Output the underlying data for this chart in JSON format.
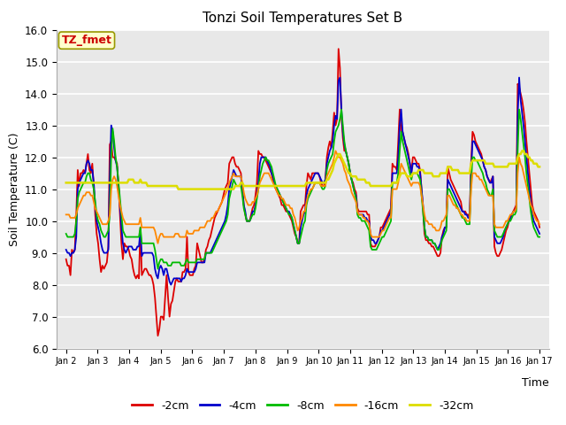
{
  "title": "Tonzi Soil Temperatures Set B",
  "xlabel": "Time",
  "ylabel": "Soil Temperature (C)",
  "label_annotation": "TZ_fmet",
  "ylim": [
    6.0,
    16.0
  ],
  "yticks": [
    6.0,
    7.0,
    8.0,
    9.0,
    10.0,
    11.0,
    12.0,
    13.0,
    14.0,
    15.0,
    16.0
  ],
  "xtick_labels": [
    "Jan 2",
    "Jan 3",
    "Jan 4",
    "Jan 5",
    "Jan 6",
    "Jan 7",
    "Jan 8",
    "Jan 9",
    "Jan 10",
    "Jan 11",
    "Jan 12",
    "Jan 13",
    "Jan 14",
    "Jan 15",
    "Jan 16",
    "Jan 17"
  ],
  "line_colors": {
    "-2cm": "#dd0000",
    "-4cm": "#0000cc",
    "-8cm": "#00bb00",
    "-16cm": "#ff8800",
    "-32cm": "#dddd00"
  },
  "line_widths": {
    "-2cm": 1.3,
    "-4cm": 1.3,
    "-8cm": 1.3,
    "-16cm": 1.3,
    "-32cm": 1.8
  },
  "bg_color": "#e8e8e8",
  "series": {
    "-2cm": [
      8.8,
      8.6,
      8.6,
      8.3,
      9.1,
      9.0,
      9.1,
      10.2,
      11.6,
      11.1,
      11.5,
      11.5,
      11.6,
      11.5,
      11.8,
      12.1,
      11.6,
      11.5,
      11.8,
      11.1,
      10.2,
      9.6,
      9.3,
      8.8,
      8.4,
      8.6,
      8.5,
      8.6,
      8.7,
      9.2,
      12.4,
      12.5,
      12.0,
      12.0,
      11.9,
      11.8,
      11.1,
      10.2,
      9.3,
      8.8,
      9.3,
      9.2,
      9.2,
      9.1,
      8.9,
      8.8,
      8.5,
      8.3,
      8.2,
      8.3,
      8.2,
      9.8,
      8.3,
      8.4,
      8.5,
      8.5,
      8.4,
      8.3,
      8.3,
      8.2,
      8.0,
      7.6,
      7.0,
      6.4,
      6.6,
      7.0,
      7.0,
      6.9,
      7.6,
      8.3,
      7.6,
      7.0,
      7.4,
      7.5,
      7.8,
      8.1,
      8.2,
      8.1,
      8.1,
      8.1,
      8.4,
      8.4,
      8.5,
      9.5,
      8.4,
      8.3,
      8.3,
      8.3,
      8.5,
      8.6,
      9.3,
      9.1,
      8.9,
      8.7,
      8.7,
      8.8,
      9.1,
      9.2,
      9.4,
      9.5,
      9.7,
      9.9,
      10.1,
      10.2,
      10.3,
      10.4,
      10.5,
      10.6,
      10.8,
      11.0,
      11.1,
      11.2,
      11.8,
      11.9,
      12.0,
      12.0,
      11.8,
      11.7,
      11.7,
      11.6,
      11.5,
      11.0,
      10.5,
      10.2,
      10.0,
      10.0,
      10.0,
      10.2,
      10.4,
      10.5,
      10.8,
      11.2,
      12.2,
      12.1,
      12.1,
      12.0,
      12.0,
      11.9,
      11.8,
      11.7,
      11.6,
      11.5,
      11.3,
      11.1,
      11.0,
      10.9,
      10.8,
      10.7,
      10.5,
      10.5,
      10.4,
      10.3,
      10.3,
      10.2,
      10.1,
      10.0,
      9.8,
      9.6,
      9.5,
      9.3,
      9.3,
      10.3,
      10.4,
      10.5,
      10.5,
      11.1,
      11.5,
      11.4,
      11.3,
      11.5,
      11.5,
      11.5,
      11.5,
      11.5,
      11.4,
      11.2,
      11.1,
      11.1,
      11.3,
      12.0,
      12.3,
      12.5,
      12.3,
      12.8,
      13.4,
      13.0,
      13.2,
      15.4,
      14.8,
      13.3,
      12.6,
      12.2,
      12.2,
      12.0,
      11.8,
      11.5,
      11.3,
      11.2,
      11.0,
      10.9,
      10.4,
      10.3,
      10.3,
      10.3,
      10.3,
      10.3,
      10.3,
      10.2,
      10.2,
      9.3,
      9.2,
      9.2,
      9.2,
      9.3,
      9.4,
      9.5,
      9.8,
      9.8,
      9.9,
      10.0,
      10.1,
      10.2,
      10.3,
      10.4,
      11.8,
      11.7,
      11.7,
      11.6,
      12.5,
      13.5,
      12.8,
      12.8,
      12.6,
      12.4,
      12.3,
      12.1,
      11.8,
      11.5,
      12.0,
      12.0,
      11.9,
      11.8,
      11.8,
      11.6,
      11.0,
      10.4,
      9.6,
      9.4,
      9.4,
      9.3,
      9.3,
      9.2,
      9.2,
      9.1,
      9.0,
      8.9,
      8.9,
      9.0,
      9.5,
      9.7,
      9.8,
      9.8,
      11.7,
      11.5,
      11.3,
      11.2,
      11.1,
      11.0,
      10.9,
      10.8,
      10.7,
      10.6,
      10.3,
      10.3,
      10.3,
      10.2,
      10.2,
      10.1,
      11.8,
      12.8,
      12.7,
      12.5,
      12.4,
      12.3,
      12.2,
      12.1,
      11.9,
      11.7,
      11.6,
      11.4,
      11.3,
      11.2,
      11.3,
      11.4,
      9.2,
      9.0,
      8.9,
      8.9,
      9.0,
      9.1,
      9.3,
      9.5,
      9.7,
      9.8,
      10.0,
      10.1,
      10.2,
      10.3,
      10.4,
      10.5,
      14.3,
      14.2,
      14.0,
      13.8,
      13.5,
      13.1,
      12.5,
      12.0,
      11.5,
      11.0,
      10.5,
      10.3,
      10.2,
      10.1,
      10.0,
      9.8
    ],
    "-4cm": [
      9.1,
      9.0,
      9.0,
      8.9,
      9.0,
      9.0,
      9.1,
      9.5,
      11.0,
      11.2,
      11.3,
      11.4,
      11.5,
      11.5,
      11.8,
      11.9,
      11.8,
      11.6,
      11.6,
      11.2,
      10.5,
      10.0,
      9.8,
      9.6,
      9.3,
      9.1,
      9.0,
      9.0,
      9.0,
      9.1,
      11.3,
      13.0,
      12.8,
      12.3,
      11.9,
      11.7,
      11.1,
      10.5,
      9.8,
      9.3,
      9.1,
      9.0,
      9.1,
      9.2,
      9.2,
      9.2,
      9.1,
      9.1,
      9.1,
      9.2,
      9.2,
      9.7,
      8.9,
      9.0,
      9.0,
      9.0,
      9.0,
      9.0,
      9.0,
      9.0,
      8.9,
      8.5,
      8.3,
      8.2,
      8.5,
      8.6,
      8.5,
      8.3,
      8.5,
      8.5,
      8.3,
      8.1,
      8.0,
      8.1,
      8.2,
      8.2,
      8.2,
      8.2,
      8.2,
      8.1,
      8.2,
      8.2,
      8.3,
      8.5,
      8.4,
      8.4,
      8.4,
      8.4,
      8.4,
      8.5,
      8.7,
      8.7,
      8.7,
      8.7,
      8.7,
      8.7,
      9.0,
      9.0,
      9.0,
      9.0,
      9.1,
      9.2,
      9.3,
      9.4,
      9.5,
      9.6,
      9.7,
      9.8,
      9.9,
      10.0,
      10.2,
      10.5,
      11.0,
      11.2,
      11.4,
      11.6,
      11.5,
      11.4,
      11.4,
      11.4,
      11.4,
      11.0,
      10.5,
      10.3,
      10.0,
      10.0,
      10.0,
      10.1,
      10.3,
      10.3,
      10.5,
      10.8,
      11.2,
      11.8,
      12.0,
      12.0,
      12.0,
      12.0,
      11.9,
      11.8,
      11.7,
      11.5,
      11.4,
      11.2,
      11.1,
      11.0,
      10.9,
      10.8,
      10.7,
      10.6,
      10.5,
      10.4,
      10.3,
      10.3,
      10.2,
      10.1,
      9.9,
      9.7,
      9.5,
      9.3,
      9.3,
      9.8,
      10.0,
      10.2,
      10.3,
      10.8,
      11.0,
      11.1,
      11.2,
      11.3,
      11.4,
      11.5,
      11.5,
      11.5,
      11.4,
      11.3,
      11.2,
      11.2,
      11.3,
      11.8,
      12.0,
      12.2,
      12.3,
      12.5,
      13.0,
      13.3,
      13.2,
      14.4,
      14.5,
      13.5,
      12.8,
      12.4,
      12.2,
      12.0,
      11.8,
      11.5,
      11.3,
      11.1,
      10.9,
      10.8,
      10.3,
      10.2,
      10.2,
      10.2,
      10.2,
      10.1,
      10.1,
      10.0,
      10.0,
      9.5,
      9.4,
      9.4,
      9.3,
      9.3,
      9.4,
      9.5,
      9.7,
      9.7,
      9.8,
      9.9,
      10.0,
      10.1,
      10.2,
      10.3,
      11.5,
      11.5,
      11.5,
      11.5,
      12.0,
      13.0,
      13.5,
      12.8,
      12.6,
      12.4,
      12.2,
      12.0,
      11.8,
      11.5,
      11.8,
      11.8,
      11.8,
      11.7,
      11.7,
      11.5,
      11.0,
      10.5,
      9.8,
      9.5,
      9.5,
      9.4,
      9.4,
      9.4,
      9.3,
      9.3,
      9.2,
      9.1,
      9.2,
      9.3,
      9.5,
      9.6,
      9.8,
      9.8,
      11.3,
      11.2,
      11.1,
      11.0,
      10.9,
      10.8,
      10.7,
      10.6,
      10.5,
      10.4,
      10.3,
      10.3,
      10.2,
      10.2,
      10.1,
      10.1,
      11.5,
      12.5,
      12.5,
      12.4,
      12.3,
      12.2,
      12.1,
      12.0,
      11.9,
      11.7,
      11.6,
      11.4,
      11.3,
      11.2,
      11.2,
      11.4,
      9.5,
      9.4,
      9.3,
      9.3,
      9.3,
      9.4,
      9.5,
      9.7,
      9.8,
      9.9,
      10.0,
      10.1,
      10.2,
      10.3,
      10.3,
      10.4,
      13.3,
      14.5,
      13.8,
      13.4,
      13.0,
      12.5,
      12.0,
      11.5,
      11.0,
      10.6,
      10.2,
      10.0,
      9.9,
      9.8,
      9.7,
      9.6
    ],
    "-8cm": [
      9.6,
      9.5,
      9.5,
      9.5,
      9.5,
      9.5,
      9.6,
      10.0,
      10.7,
      10.9,
      11.0,
      11.1,
      11.2,
      11.2,
      11.4,
      11.5,
      11.5,
      11.3,
      11.2,
      11.0,
      10.6,
      10.2,
      10.0,
      9.9,
      9.7,
      9.6,
      9.5,
      9.5,
      9.6,
      9.7,
      10.2,
      12.1,
      12.9,
      12.5,
      12.0,
      11.7,
      11.2,
      10.7,
      10.2,
      9.7,
      9.6,
      9.5,
      9.5,
      9.5,
      9.5,
      9.5,
      9.5,
      9.5,
      9.5,
      9.5,
      9.5,
      9.8,
      9.3,
      9.3,
      9.3,
      9.3,
      9.3,
      9.3,
      9.3,
      9.3,
      9.3,
      9.1,
      8.8,
      8.5,
      8.7,
      8.8,
      8.8,
      8.7,
      8.7,
      8.7,
      8.6,
      8.6,
      8.6,
      8.7,
      8.7,
      8.7,
      8.7,
      8.7,
      8.7,
      8.6,
      8.6,
      8.6,
      8.7,
      8.8,
      8.7,
      8.7,
      8.7,
      8.7,
      8.7,
      8.7,
      8.8,
      8.8,
      8.8,
      8.8,
      8.8,
      8.8,
      9.0,
      9.0,
      9.0,
      9.0,
      9.0,
      9.1,
      9.2,
      9.3,
      9.4,
      9.5,
      9.6,
      9.7,
      9.8,
      9.9,
      10.0,
      10.2,
      10.7,
      10.9,
      11.1,
      11.3,
      11.2,
      11.1,
      11.1,
      11.1,
      11.1,
      10.8,
      10.4,
      10.2,
      10.0,
      10.0,
      10.0,
      10.1,
      10.2,
      10.2,
      10.4,
      10.7,
      11.0,
      11.4,
      11.6,
      11.8,
      11.9,
      12.0,
      11.9,
      11.9,
      11.8,
      11.7,
      11.5,
      11.3,
      11.1,
      11.0,
      10.9,
      10.8,
      10.7,
      10.6,
      10.5,
      10.4,
      10.3,
      10.2,
      10.2,
      10.1,
      9.9,
      9.7,
      9.5,
      9.3,
      9.3,
      9.5,
      9.7,
      9.9,
      10.0,
      10.5,
      10.7,
      10.8,
      10.9,
      11.0,
      11.1,
      11.2,
      11.2,
      11.2,
      11.2,
      11.1,
      11.0,
      11.0,
      11.1,
      11.6,
      11.8,
      11.9,
      12.0,
      12.1,
      12.5,
      12.8,
      12.9,
      13.0,
      13.2,
      13.5,
      13.0,
      12.5,
      12.2,
      12.0,
      11.8,
      11.5,
      11.3,
      11.1,
      10.9,
      10.7,
      10.2,
      10.1,
      10.1,
      10.0,
      10.0,
      10.0,
      9.9,
      9.8,
      9.7,
      9.2,
      9.1,
      9.1,
      9.1,
      9.1,
      9.2,
      9.3,
      9.4,
      9.5,
      9.5,
      9.6,
      9.7,
      9.8,
      9.9,
      10.0,
      11.2,
      11.2,
      11.2,
      11.2,
      11.5,
      12.2,
      12.8,
      12.5,
      12.3,
      12.1,
      11.9,
      11.7,
      11.5,
      11.3,
      11.5,
      11.5,
      11.5,
      11.5,
      11.4,
      11.3,
      10.8,
      10.3,
      9.8,
      9.5,
      9.5,
      9.4,
      9.4,
      9.4,
      9.3,
      9.3,
      9.2,
      9.1,
      9.1,
      9.2,
      9.4,
      9.5,
      9.6,
      9.7,
      11.0,
      11.0,
      10.9,
      10.8,
      10.7,
      10.6,
      10.5,
      10.4,
      10.3,
      10.2,
      10.1,
      10.1,
      10.0,
      9.9,
      9.9,
      9.9,
      11.2,
      12.0,
      12.0,
      11.9,
      11.9,
      11.8,
      11.7,
      11.6,
      11.5,
      11.3,
      11.2,
      11.0,
      10.9,
      10.8,
      10.8,
      11.0,
      9.7,
      9.6,
      9.5,
      9.5,
      9.5,
      9.5,
      9.6,
      9.7,
      9.8,
      9.9,
      10.0,
      10.0,
      10.1,
      10.2,
      10.2,
      10.3,
      12.2,
      13.5,
      13.2,
      12.8,
      12.4,
      12.0,
      11.5,
      11.1,
      10.7,
      10.3,
      10.0,
      9.8,
      9.7,
      9.6,
      9.5,
      9.5
    ],
    "-16cm": [
      10.2,
      10.2,
      10.2,
      10.1,
      10.1,
      10.1,
      10.1,
      10.2,
      10.4,
      10.5,
      10.6,
      10.7,
      10.8,
      10.8,
      10.9,
      10.9,
      10.9,
      10.8,
      10.8,
      10.6,
      10.4,
      10.3,
      10.2,
      10.1,
      10.0,
      9.9,
      9.9,
      9.9,
      9.9,
      10.0,
      10.2,
      11.0,
      11.3,
      11.4,
      11.3,
      11.1,
      10.8,
      10.5,
      10.3,
      10.1,
      10.0,
      9.9,
      9.9,
      9.9,
      9.9,
      9.9,
      9.9,
      9.9,
      9.9,
      9.9,
      9.9,
      10.1,
      9.8,
      9.8,
      9.8,
      9.8,
      9.8,
      9.8,
      9.8,
      9.8,
      9.8,
      9.7,
      9.5,
      9.3,
      9.5,
      9.6,
      9.6,
      9.5,
      9.5,
      9.5,
      9.5,
      9.5,
      9.5,
      9.5,
      9.5,
      9.6,
      9.6,
      9.6,
      9.5,
      9.5,
      9.5,
      9.5,
      9.5,
      9.7,
      9.6,
      9.6,
      9.6,
      9.6,
      9.7,
      9.7,
      9.7,
      9.7,
      9.8,
      9.8,
      9.8,
      9.8,
      9.9,
      10.0,
      10.0,
      10.0,
      10.1,
      10.1,
      10.2,
      10.3,
      10.3,
      10.4,
      10.5,
      10.6,
      10.7,
      10.8,
      10.9,
      11.0,
      11.2,
      11.3,
      11.4,
      11.5,
      11.4,
      11.4,
      11.4,
      11.4,
      11.4,
      11.2,
      10.9,
      10.7,
      10.6,
      10.5,
      10.5,
      10.5,
      10.6,
      10.6,
      10.7,
      10.8,
      11.0,
      11.2,
      11.3,
      11.4,
      11.5,
      11.5,
      11.5,
      11.5,
      11.4,
      11.3,
      11.2,
      11.1,
      11.0,
      10.9,
      10.8,
      10.8,
      10.7,
      10.7,
      10.6,
      10.5,
      10.5,
      10.5,
      10.4,
      10.4,
      10.2,
      10.1,
      9.9,
      9.7,
      9.8,
      10.0,
      10.1,
      10.3,
      10.3,
      10.6,
      10.8,
      10.9,
      11.0,
      11.0,
      11.1,
      11.2,
      11.2,
      11.2,
      11.2,
      11.1,
      11.1,
      11.1,
      11.1,
      11.4,
      11.5,
      11.6,
      11.7,
      11.8,
      12.0,
      12.2,
      12.1,
      12.0,
      12.0,
      11.9,
      11.8,
      11.6,
      11.5,
      11.3,
      11.2,
      11.1,
      10.9,
      10.8,
      10.7,
      10.6,
      10.3,
      10.2,
      10.2,
      10.2,
      10.1,
      10.1,
      10.0,
      10.0,
      9.9,
      9.6,
      9.5,
      9.5,
      9.5,
      9.5,
      9.5,
      9.5,
      9.6,
      9.7,
      9.7,
      9.8,
      9.9,
      10.0,
      10.1,
      10.1,
      11.0,
      11.0,
      11.0,
      11.0,
      11.2,
      11.5,
      11.8,
      11.7,
      11.6,
      11.5,
      11.4,
      11.3,
      11.2,
      11.1,
      11.2,
      11.2,
      11.2,
      11.2,
      11.2,
      11.1,
      10.8,
      10.5,
      10.2,
      10.0,
      10.0,
      9.9,
      9.9,
      9.9,
      9.8,
      9.8,
      9.7,
      9.7,
      9.7,
      9.8,
      10.0,
      10.0,
      10.1,
      10.2,
      10.8,
      10.8,
      10.7,
      10.6,
      10.5,
      10.5,
      10.4,
      10.4,
      10.3,
      10.2,
      10.2,
      10.1,
      10.1,
      10.0,
      10.0,
      10.0,
      11.0,
      11.5,
      11.5,
      11.5,
      11.4,
      11.4,
      11.3,
      11.3,
      11.2,
      11.1,
      11.0,
      10.9,
      10.8,
      10.8,
      10.8,
      10.8,
      9.9,
      9.8,
      9.8,
      9.8,
      9.8,
      9.8,
      9.8,
      9.9,
      10.0,
      10.0,
      10.1,
      10.2,
      10.2,
      10.3,
      10.3,
      10.4,
      11.5,
      12.0,
      11.8,
      11.7,
      11.5,
      11.3,
      11.1,
      10.9,
      10.7,
      10.5,
      10.4,
      10.2,
      10.1,
      10.0,
      10.0,
      9.9
    ],
    "-32cm": [
      11.2,
      11.2,
      11.2,
      11.2,
      11.2,
      11.2,
      11.2,
      11.2,
      11.2,
      11.2,
      11.2,
      11.2,
      11.2,
      11.2,
      11.2,
      11.2,
      11.2,
      11.2,
      11.2,
      11.2,
      11.2,
      11.2,
      11.2,
      11.2,
      11.2,
      11.2,
      11.2,
      11.2,
      11.2,
      11.2,
      11.2,
      11.2,
      11.2,
      11.2,
      11.2,
      11.2,
      11.2,
      11.2,
      11.2,
      11.2,
      11.2,
      11.2,
      11.2,
      11.3,
      11.3,
      11.3,
      11.3,
      11.2,
      11.2,
      11.2,
      11.2,
      11.3,
      11.2,
      11.2,
      11.2,
      11.2,
      11.1,
      11.1,
      11.1,
      11.1,
      11.1,
      11.1,
      11.1,
      11.1,
      11.1,
      11.1,
      11.1,
      11.1,
      11.1,
      11.1,
      11.1,
      11.1,
      11.1,
      11.1,
      11.1,
      11.1,
      11.1,
      11.0,
      11.0,
      11.0,
      11.0,
      11.0,
      11.0,
      11.0,
      11.0,
      11.0,
      11.0,
      11.0,
      11.0,
      11.0,
      11.0,
      11.0,
      11.0,
      11.0,
      11.0,
      11.0,
      11.0,
      11.0,
      11.0,
      11.0,
      11.0,
      11.0,
      11.0,
      11.0,
      11.0,
      11.0,
      11.0,
      11.0,
      11.0,
      11.0,
      11.0,
      11.0,
      11.0,
      11.0,
      11.0,
      11.0,
      11.1,
      11.1,
      11.1,
      11.1,
      11.2,
      11.2,
      11.1,
      11.1,
      11.1,
      11.1,
      11.1,
      11.1,
      11.1,
      11.1,
      11.1,
      11.1,
      11.1,
      11.1,
      11.1,
      11.1,
      11.1,
      11.1,
      11.1,
      11.1,
      11.1,
      11.1,
      11.1,
      11.1,
      11.1,
      11.1,
      11.1,
      11.1,
      11.1,
      11.1,
      11.1,
      11.1,
      11.1,
      11.1,
      11.1,
      11.1,
      11.1,
      11.1,
      11.1,
      11.1,
      11.1,
      11.1,
      11.1,
      11.1,
      11.1,
      11.2,
      11.2,
      11.2,
      11.2,
      11.2,
      11.2,
      11.2,
      11.2,
      11.2,
      11.2,
      11.2,
      11.2,
      11.2,
      11.2,
      11.3,
      11.3,
      11.4,
      11.5,
      11.6,
      11.8,
      11.9,
      12.0,
      12.1,
      12.1,
      12.0,
      11.9,
      11.8,
      11.7,
      11.6,
      11.5,
      11.5,
      11.4,
      11.4,
      11.4,
      11.4,
      11.3,
      11.3,
      11.3,
      11.3,
      11.3,
      11.3,
      11.2,
      11.2,
      11.2,
      11.1,
      11.1,
      11.1,
      11.1,
      11.1,
      11.1,
      11.1,
      11.1,
      11.1,
      11.1,
      11.1,
      11.1,
      11.1,
      11.1,
      11.1,
      11.2,
      11.2,
      11.2,
      11.2,
      11.3,
      11.4,
      11.5,
      11.5,
      11.5,
      11.5,
      11.4,
      11.4,
      11.4,
      11.4,
      11.5,
      11.5,
      11.5,
      11.5,
      11.6,
      11.6,
      11.6,
      11.6,
      11.5,
      11.5,
      11.5,
      11.5,
      11.5,
      11.5,
      11.4,
      11.4,
      11.4,
      11.4,
      11.4,
      11.5,
      11.5,
      11.5,
      11.5,
      11.5,
      11.7,
      11.7,
      11.7,
      11.6,
      11.6,
      11.6,
      11.6,
      11.6,
      11.5,
      11.5,
      11.5,
      11.5,
      11.5,
      11.5,
      11.5,
      11.5,
      11.8,
      11.9,
      11.9,
      11.9,
      11.9,
      11.9,
      11.9,
      11.9,
      11.9,
      11.9,
      11.8,
      11.8,
      11.8,
      11.8,
      11.8,
      11.8,
      11.7,
      11.7,
      11.7,
      11.7,
      11.7,
      11.7,
      11.7,
      11.7,
      11.7,
      11.7,
      11.8,
      11.8,
      11.8,
      11.8,
      11.8,
      11.8,
      12.0,
      12.1,
      12.1,
      12.2,
      12.2,
      12.1,
      12.1,
      12.0,
      12.0,
      11.9,
      11.9,
      11.8,
      11.8,
      11.8,
      11.7,
      11.7
    ]
  }
}
